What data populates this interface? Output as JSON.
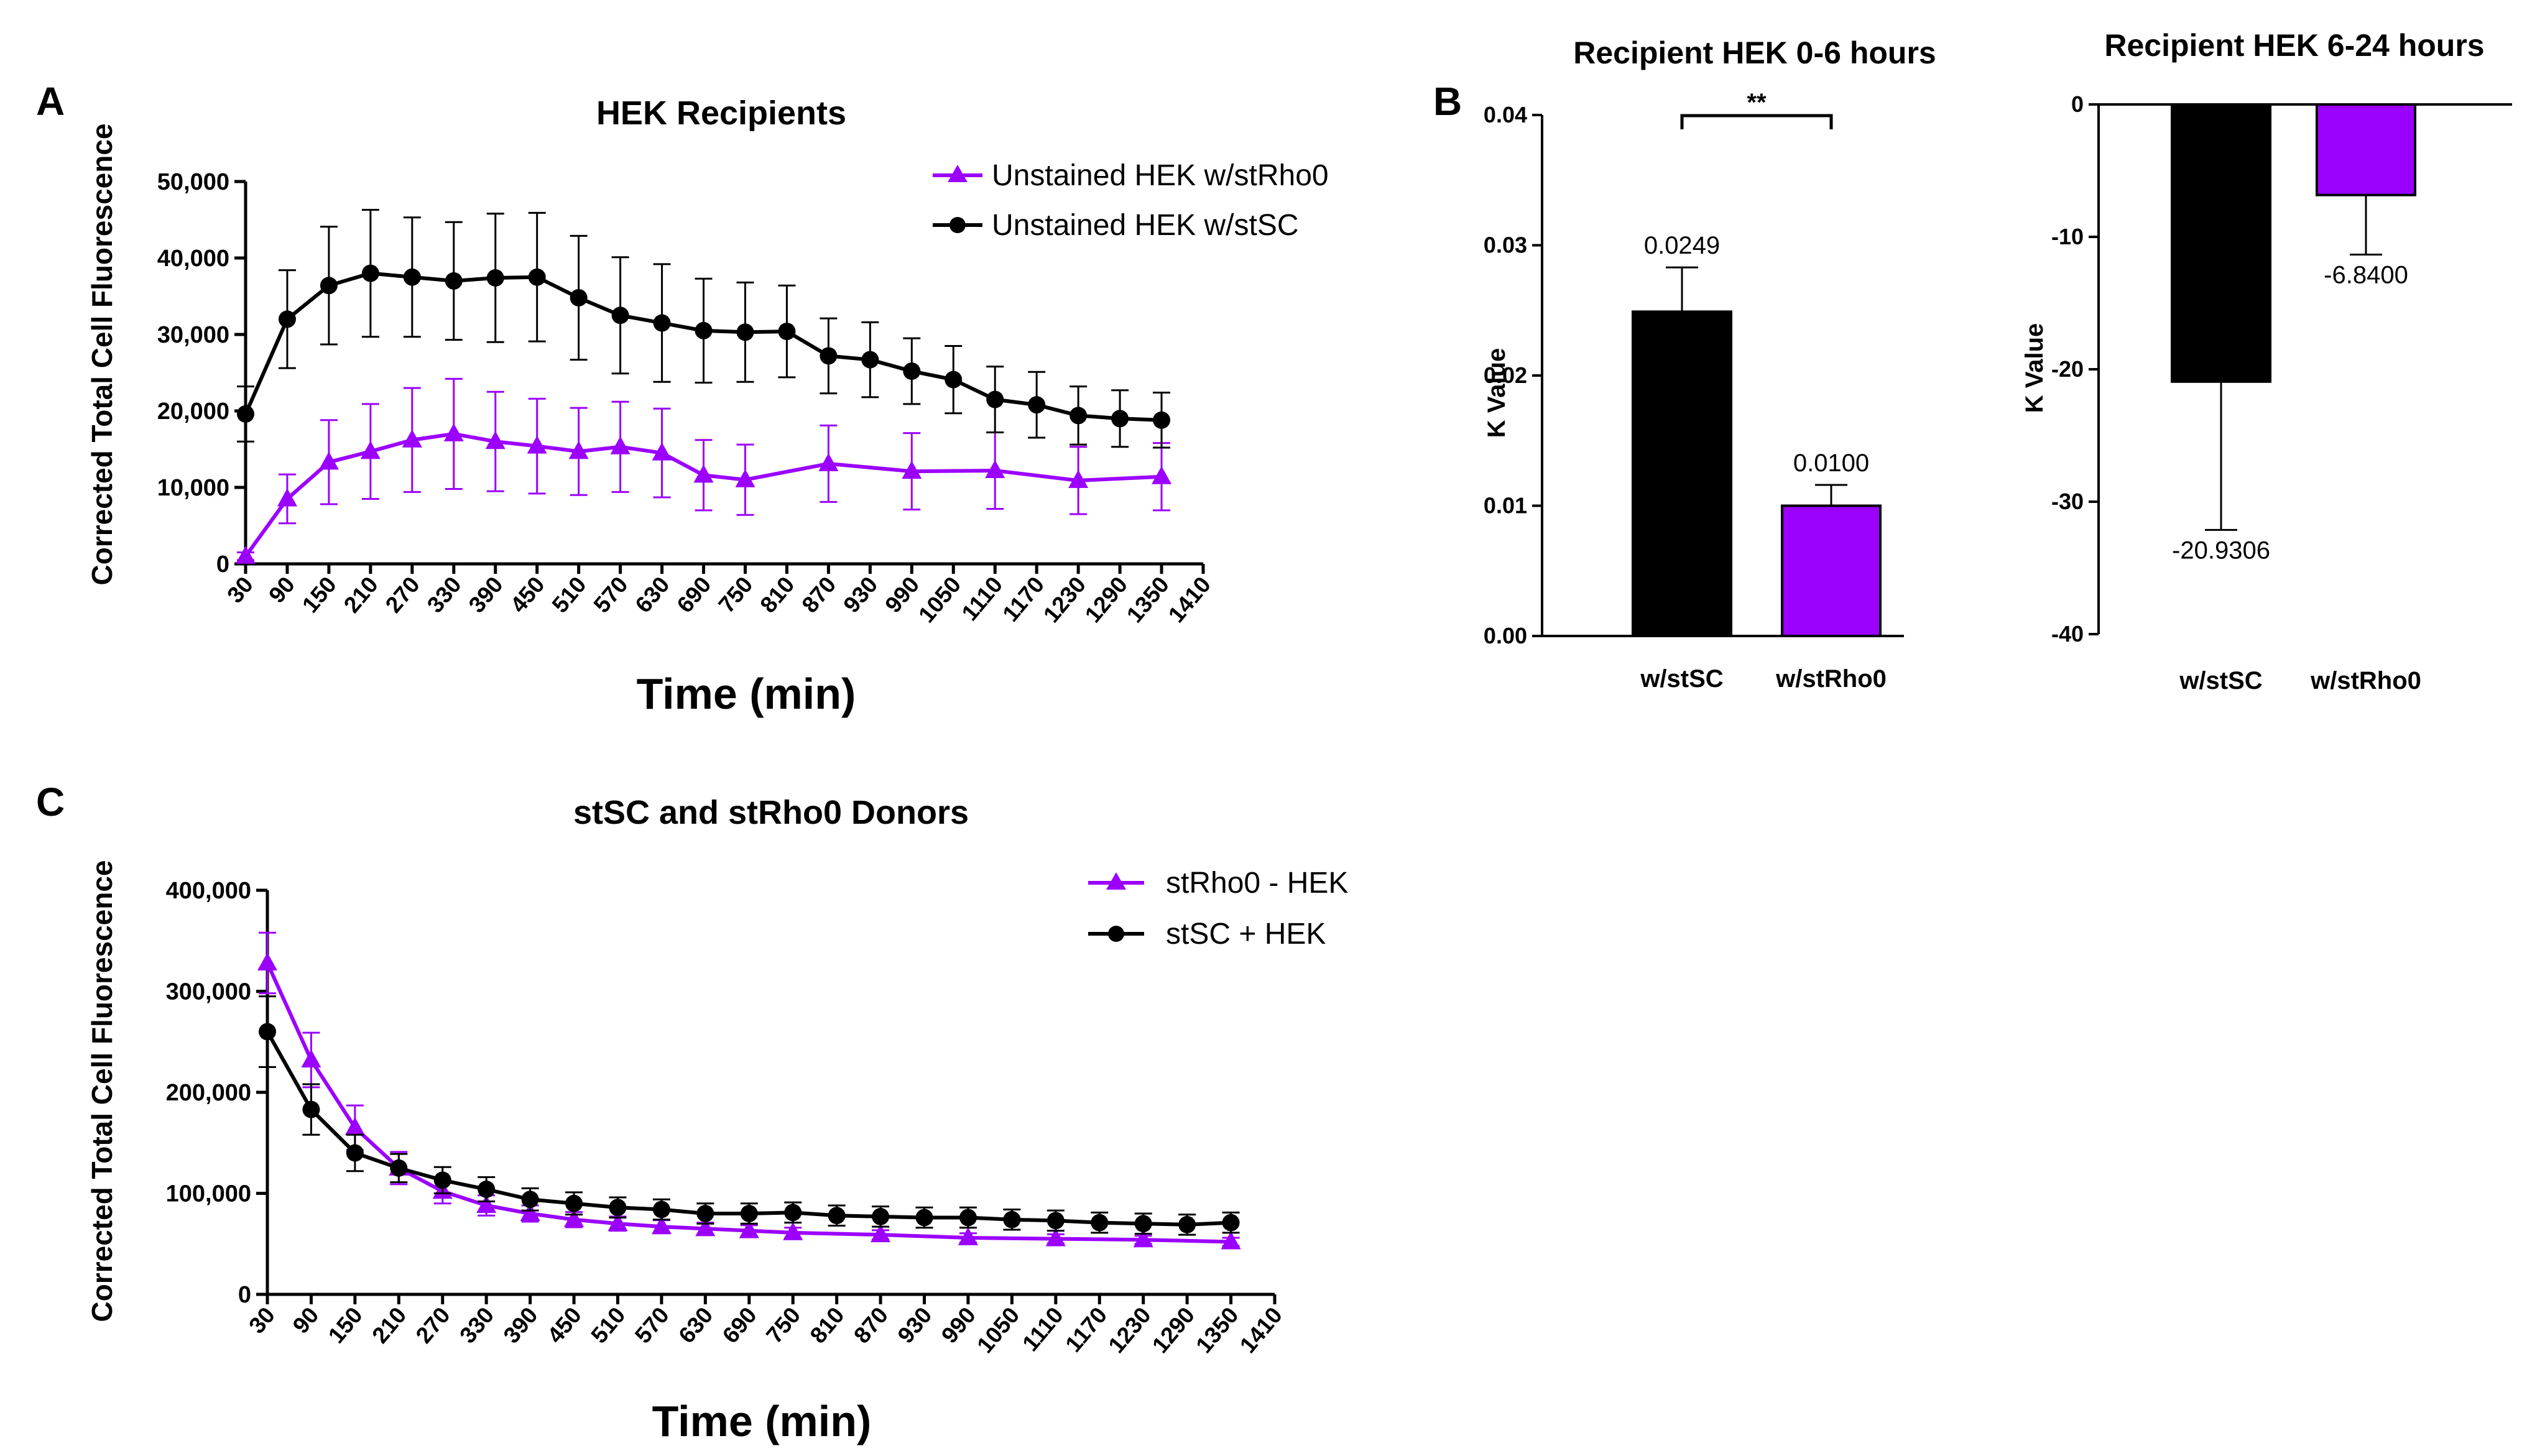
{
  "colors": {
    "purple": "#9b00ff",
    "black": "#000000"
  },
  "chart_data": [
    {
      "panel": "A",
      "type": "line",
      "title": "HEK Recipients",
      "xlabel": "Time (min)",
      "ylabel": "Corrected Total Cell Fluorescence",
      "ylim": [
        0,
        50000
      ],
      "xlim": [
        30,
        1410
      ],
      "yticks": [
        "0",
        "10,000",
        "20,000",
        "30,000",
        "40,000",
        "50,000"
      ],
      "ytick_values": [
        0,
        10000,
        20000,
        30000,
        40000,
        50000
      ],
      "xticks": [
        "30",
        "90",
        "150",
        "210",
        "270",
        "330",
        "390",
        "450",
        "510",
        "570",
        "630",
        "690",
        "750",
        "810",
        "870",
        "930",
        "990",
        "1050",
        "1110",
        "1170",
        "1230",
        "1290",
        "1350",
        "1410"
      ],
      "xtick_values": [
        30,
        90,
        150,
        210,
        270,
        330,
        390,
        450,
        510,
        570,
        630,
        690,
        750,
        810,
        870,
        930,
        990,
        1050,
        1110,
        1170,
        1230,
        1290,
        1350,
        1410
      ],
      "legend": [
        "Unstained HEK w/stRho0",
        "Unstained HEK w/stSC"
      ],
      "series": [
        {
          "name": "Unstained HEK w/stRho0",
          "color": "#9b00ff",
          "marker": "triangle",
          "x": [
            30,
            90,
            150,
            210,
            270,
            330,
            390,
            450,
            510,
            570,
            630,
            690,
            750,
            870,
            990,
            1110,
            1230,
            1350
          ],
          "y": [
            1000,
            8500,
            13300,
            14700,
            16200,
            17000,
            16000,
            15400,
            14700,
            15300,
            14500,
            11600,
            11000,
            13100,
            12100,
            12200,
            10900,
            11400
          ],
          "err": [
            500,
            3200,
            5500,
            6200,
            6800,
            7200,
            6500,
            6200,
            5700,
            5900,
            5800,
            4600,
            4600,
            5000,
            5000,
            5000,
            4400,
            4400
          ]
        },
        {
          "name": "Unstained HEK w/stSC",
          "color": "#000000",
          "marker": "circle",
          "x": [
            30,
            90,
            150,
            210,
            270,
            330,
            390,
            450,
            510,
            570,
            630,
            690,
            750,
            810,
            870,
            930,
            990,
            1050,
            1110,
            1170,
            1230,
            1290,
            1350
          ],
          "y": [
            19600,
            32000,
            36400,
            38000,
            37500,
            37000,
            37400,
            37500,
            34800,
            32500,
            31500,
            30500,
            30300,
            30400,
            27200,
            26700,
            25200,
            24100,
            21500,
            20800,
            19400,
            19000,
            18800
          ],
          "err": [
            3600,
            6400,
            7700,
            8300,
            7800,
            7700,
            8400,
            8400,
            8100,
            7600,
            7700,
            6800,
            6500,
            6000,
            4900,
            4900,
            4300,
            4400,
            4300,
            4300,
            3800,
            3700,
            3600
          ]
        }
      ]
    },
    {
      "panel": "B",
      "type": "bar",
      "title": "Recipient HEK 0-6 hours",
      "ylabel": "K Value",
      "ylim": [
        0,
        0.04
      ],
      "yticks": [
        "0.00",
        "0.01",
        "0.02",
        "0.03",
        "0.04"
      ],
      "ytick_values": [
        0,
        0.01,
        0.02,
        0.03,
        0.04
      ],
      "categories": [
        "w/stSC",
        "w/stRho0"
      ],
      "values": [
        0.0249,
        0.01
      ],
      "err": [
        0.0034,
        0.0016
      ],
      "value_labels": [
        "0.0249",
        "0.0100"
      ],
      "colors": [
        "#000000",
        "#9b00ff"
      ],
      "significance": "**"
    },
    {
      "panel": "B",
      "type": "bar",
      "title": "Recipient HEK 6-24 hours",
      "ylabel": "K Value",
      "ylim": [
        -40,
        0
      ],
      "yticks": [
        "0",
        "-10",
        "-20",
        "-30",
        "-40"
      ],
      "ytick_values": [
        0,
        -10,
        -20,
        -30,
        -40
      ],
      "categories": [
        "w/stSC",
        "w/stRho0"
      ],
      "values": [
        -20.9306,
        -6.84
      ],
      "err": [
        11.2,
        4.5
      ],
      "value_labels": [
        "-20.9306",
        "-6.8400"
      ],
      "colors": [
        "#000000",
        "#9b00ff"
      ]
    },
    {
      "panel": "C",
      "type": "line",
      "title": "stSC and stRho0 Donors",
      "xlabel": "Time (min)",
      "ylabel": "Corrected Total Cell Fluorescence",
      "ylim": [
        0,
        400000
      ],
      "xlim": [
        30,
        1410
      ],
      "yticks": [
        "0",
        "100,000",
        "200,000",
        "300,000",
        "400,000"
      ],
      "ytick_values": [
        0,
        100000,
        200000,
        300000,
        400000
      ],
      "xticks": [
        "30",
        "90",
        "150",
        "210",
        "270",
        "330",
        "390",
        "450",
        "510",
        "570",
        "630",
        "690",
        "750",
        "810",
        "870",
        "930",
        "990",
        "1050",
        "1110",
        "1170",
        "1230",
        "1290",
        "1350",
        "1410"
      ],
      "xtick_values": [
        30,
        90,
        150,
        210,
        270,
        330,
        390,
        450,
        510,
        570,
        630,
        690,
        750,
        810,
        870,
        930,
        990,
        1050,
        1110,
        1170,
        1230,
        1290,
        1350,
        1410
      ],
      "legend": [
        "stRho0 -  HEK",
        "stSC + HEK"
      ],
      "series": [
        {
          "name": "stRho0 -  HEK",
          "color": "#9b00ff",
          "marker": "triangle",
          "x": [
            30,
            90,
            150,
            210,
            270,
            330,
            390,
            450,
            510,
            570,
            630,
            690,
            750,
            870,
            990,
            1110,
            1230,
            1350
          ],
          "y": [
            328000,
            232000,
            165000,
            125000,
            102000,
            88000,
            80000,
            74000,
            70000,
            67000,
            65000,
            63000,
            61000,
            59000,
            56000,
            55000,
            54000,
            52000
          ],
          "err": [
            30000,
            27000,
            22000,
            16000,
            12000,
            10000,
            8000,
            7500,
            7000,
            6500,
            6000,
            5500,
            5000,
            4500,
            4500,
            4500,
            4000,
            4000
          ]
        },
        {
          "name": "stSC + HEK",
          "color": "#000000",
          "marker": "circle",
          "x": [
            30,
            90,
            150,
            210,
            270,
            330,
            390,
            450,
            510,
            570,
            630,
            690,
            750,
            810,
            870,
            930,
            990,
            1050,
            1110,
            1170,
            1230,
            1290,
            1350
          ],
          "y": [
            260000,
            183000,
            140000,
            125000,
            113000,
            104000,
            94000,
            90000,
            86000,
            84000,
            80000,
            80000,
            81000,
            78000,
            77000,
            76000,
            76000,
            74000,
            73000,
            71000,
            70000,
            69000,
            71000
          ],
          "err": [
            35000,
            25000,
            18000,
            14000,
            13000,
            12000,
            11000,
            11000,
            10000,
            10000,
            10000,
            10000,
            10000,
            10000,
            10000,
            10000,
            10000,
            10000,
            10000,
            10000,
            10000,
            10000,
            10000
          ]
        }
      ]
    }
  ]
}
